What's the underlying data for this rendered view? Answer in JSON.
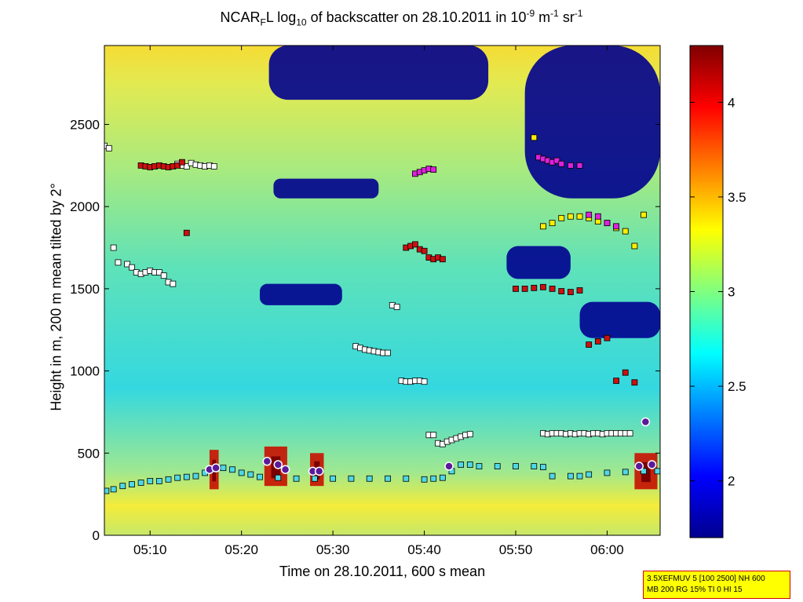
{
  "chart_data": {
    "type": "heatmap",
    "title": {
      "prefix": "NCAR",
      "sub1": "F",
      "mid1": "L log",
      "sub2": "10",
      "mid2": " of backscatter on 28.10.2011 in 10",
      "sup1": "-9",
      "mid3": " m",
      "sup2": "-1",
      "mid4": " sr",
      "sup3": "-1"
    },
    "xlabel": "Time on 28.10.2011, 600 s mean",
    "ylabel": "Height in m, 200 m mean tilted by 2°",
    "x_ticks": [
      "05:10",
      "05:20",
      "05:30",
      "05:40",
      "05:50",
      "06:00"
    ],
    "x_tick_minutes": [
      310,
      320,
      330,
      340,
      350,
      360
    ],
    "xlim_minutes": [
      305.0,
      365.8
    ],
    "y_ticks": [
      0,
      500,
      1000,
      1500,
      2000,
      2500
    ],
    "ylim": [
      0,
      2980
    ],
    "colorbar": {
      "colormap": "jet",
      "ticks": [
        2,
        2.5,
        3,
        3.5,
        4
      ],
      "tick_labels": [
        "2",
        "2.5",
        "3",
        "3.5",
        "4"
      ],
      "range": [
        1.7,
        4.3
      ]
    },
    "low_backscatter_regions": [
      {
        "t": [
          323,
          347
        ],
        "h": [
          2650,
          2980
        ]
      },
      {
        "t": [
          351,
          365.8
        ],
        "h": [
          2050,
          2980
        ]
      },
      {
        "t": [
          323.5,
          335
        ],
        "h": [
          2050,
          2170
        ]
      },
      {
        "t": [
          349,
          356
        ],
        "h": [
          1560,
          1760
        ]
      },
      {
        "t": [
          357,
          365.8
        ],
        "h": [
          1200,
          1420
        ]
      },
      {
        "t": [
          322,
          331
        ],
        "h": [
          1400,
          1530
        ]
      }
    ],
    "high_backscatter_plumes": [
      {
        "t": [
          316.5,
          317.5
        ],
        "h": [
          280,
          520
        ]
      },
      {
        "t": [
          322.5,
          325
        ],
        "h": [
          300,
          540
        ]
      },
      {
        "t": [
          327.5,
          329
        ],
        "h": [
          300,
          500
        ]
      },
      {
        "t": [
          363,
          365.5
        ],
        "h": [
          280,
          500
        ]
      }
    ],
    "series": [
      {
        "name": "boundary layer height (cyan squares)",
        "t": [
          305.2,
          306,
          307,
          308,
          309,
          310,
          311,
          312,
          313,
          314,
          315,
          316,
          317,
          318,
          319,
          320,
          321,
          322,
          324,
          326,
          328,
          330,
          332,
          334,
          336,
          338,
          340,
          341,
          342,
          343,
          344,
          345,
          346,
          348,
          350,
          352,
          353,
          354,
          356,
          357,
          358,
          360,
          362,
          364,
          365.5
        ],
        "h": [
          270,
          280,
          300,
          310,
          320,
          330,
          330,
          340,
          350,
          355,
          360,
          380,
          400,
          410,
          400,
          380,
          370,
          355,
          350,
          345,
          345,
          345,
          345,
          345,
          345,
          345,
          340,
          345,
          350,
          390,
          430,
          430,
          420,
          420,
          420,
          420,
          415,
          360,
          360,
          360,
          370,
          380,
          385,
          390,
          390
        ]
      },
      {
        "name": "aerosol layer tops (white squares)",
        "t": [
          305,
          305.5,
          306,
          306.5,
          307.5,
          308,
          308.5,
          309,
          309.5,
          310,
          310.5,
          311,
          311.5,
          312,
          312.5,
          313,
          313.5,
          314,
          314.5,
          315,
          315.5,
          316,
          316.5,
          317,
          332.5,
          333,
          333.5,
          334,
          334.5,
          335,
          335.5,
          336,
          336.5,
          337,
          337.5,
          338,
          338.5,
          339,
          339.5,
          340,
          340.5,
          341,
          341.5,
          342,
          342.5,
          343,
          343.5,
          344,
          344.5,
          345,
          353,
          353.5,
          354,
          354.5,
          355,
          355.5,
          356,
          356.5,
          357,
          357.5,
          358,
          358.5,
          359,
          359.5,
          360,
          360.5,
          361,
          361.5,
          362,
          362.5
        ],
        "h": [
          2370,
          2355,
          1750,
          1660,
          1650,
          1630,
          1600,
          1590,
          1600,
          1610,
          1600,
          1600,
          1580,
          1540,
          1530,
          2260,
          2250,
          2245,
          2265,
          2255,
          2250,
          2245,
          2250,
          2245,
          1150,
          1140,
          1130,
          1125,
          1120,
          1115,
          1110,
          1110,
          1400,
          1390,
          940,
          935,
          935,
          940,
          940,
          935,
          610,
          610,
          560,
          555,
          570,
          580,
          590,
          600,
          610,
          615,
          620,
          615,
          620,
          620,
          620,
          615,
          620,
          615,
          620,
          620,
          615,
          620,
          620,
          615,
          620,
          620,
          620,
          620,
          620,
          620
        ]
      },
      {
        "name": "layer tops (red squares)",
        "t": [
          309,
          309.5,
          310,
          310.5,
          311,
          311.5,
          312,
          312.5,
          313,
          313.5,
          314,
          338,
          338.5,
          339,
          339.5,
          340,
          340.5,
          341,
          341.5,
          342,
          350,
          351,
          352,
          353,
          354,
          355,
          356,
          357,
          358,
          359,
          360,
          361,
          362,
          363
        ],
        "h": [
          2250,
          2245,
          2240,
          2245,
          2250,
          2245,
          2240,
          2245,
          2250,
          2270,
          1840,
          1750,
          1760,
          1770,
          1740,
          1730,
          1690,
          1680,
          1690,
          1680,
          1500,
          1500,
          1505,
          1510,
          1500,
          1485,
          1480,
          1490,
          1160,
          1180,
          1200,
          940,
          990,
          930
        ]
      },
      {
        "name": "layer tops (yellow squares)",
        "t": [
          352,
          353,
          354,
          355,
          356,
          357,
          358,
          359,
          360,
          361,
          362,
          363,
          364
        ],
        "h": [
          2420,
          1880,
          1900,
          1930,
          1940,
          1940,
          1930,
          1910,
          1900,
          1870,
          1850,
          1760,
          1950
        ]
      },
      {
        "name": "layer tops (magenta squares)",
        "t": [
          339,
          339.5,
          340,
          340.5,
          341,
          352.5,
          353,
          353.5,
          354,
          354.5,
          355,
          356,
          357,
          358,
          359,
          360,
          361
        ],
        "h": [
          2200,
          2210,
          2220,
          2230,
          2225,
          2300,
          2290,
          2280,
          2270,
          2280,
          2260,
          2250,
          2250,
          1950,
          1940,
          1900,
          1880
        ]
      },
      {
        "name": "lifting condensation / cloud base (purple circles)",
        "t": [
          316.5,
          317.2,
          322.8,
          324,
          324.8,
          327.8,
          328.5,
          342.7,
          363.5,
          364.2,
          364.9
        ],
        "h": [
          400,
          410,
          450,
          430,
          400,
          390,
          390,
          420,
          420,
          690,
          430
        ]
      }
    ]
  },
  "info_box": {
    "line1": "3.5XEFMUV 5 [100 2500] NH 600",
    "line2": "MB 200 RG 15% TI 0 HI 15"
  },
  "colors": {
    "frame": "#000000",
    "info_box_bg": "#ffff00",
    "info_box_border": "#d00000",
    "cbl_marker": "#4fd8e6",
    "white_marker": "#ffffff",
    "red_marker": "#cc1010",
    "yellow_marker": "#ffee00",
    "magenta_marker": "#dd22dd",
    "purple_marker": "#5b1a9a"
  }
}
